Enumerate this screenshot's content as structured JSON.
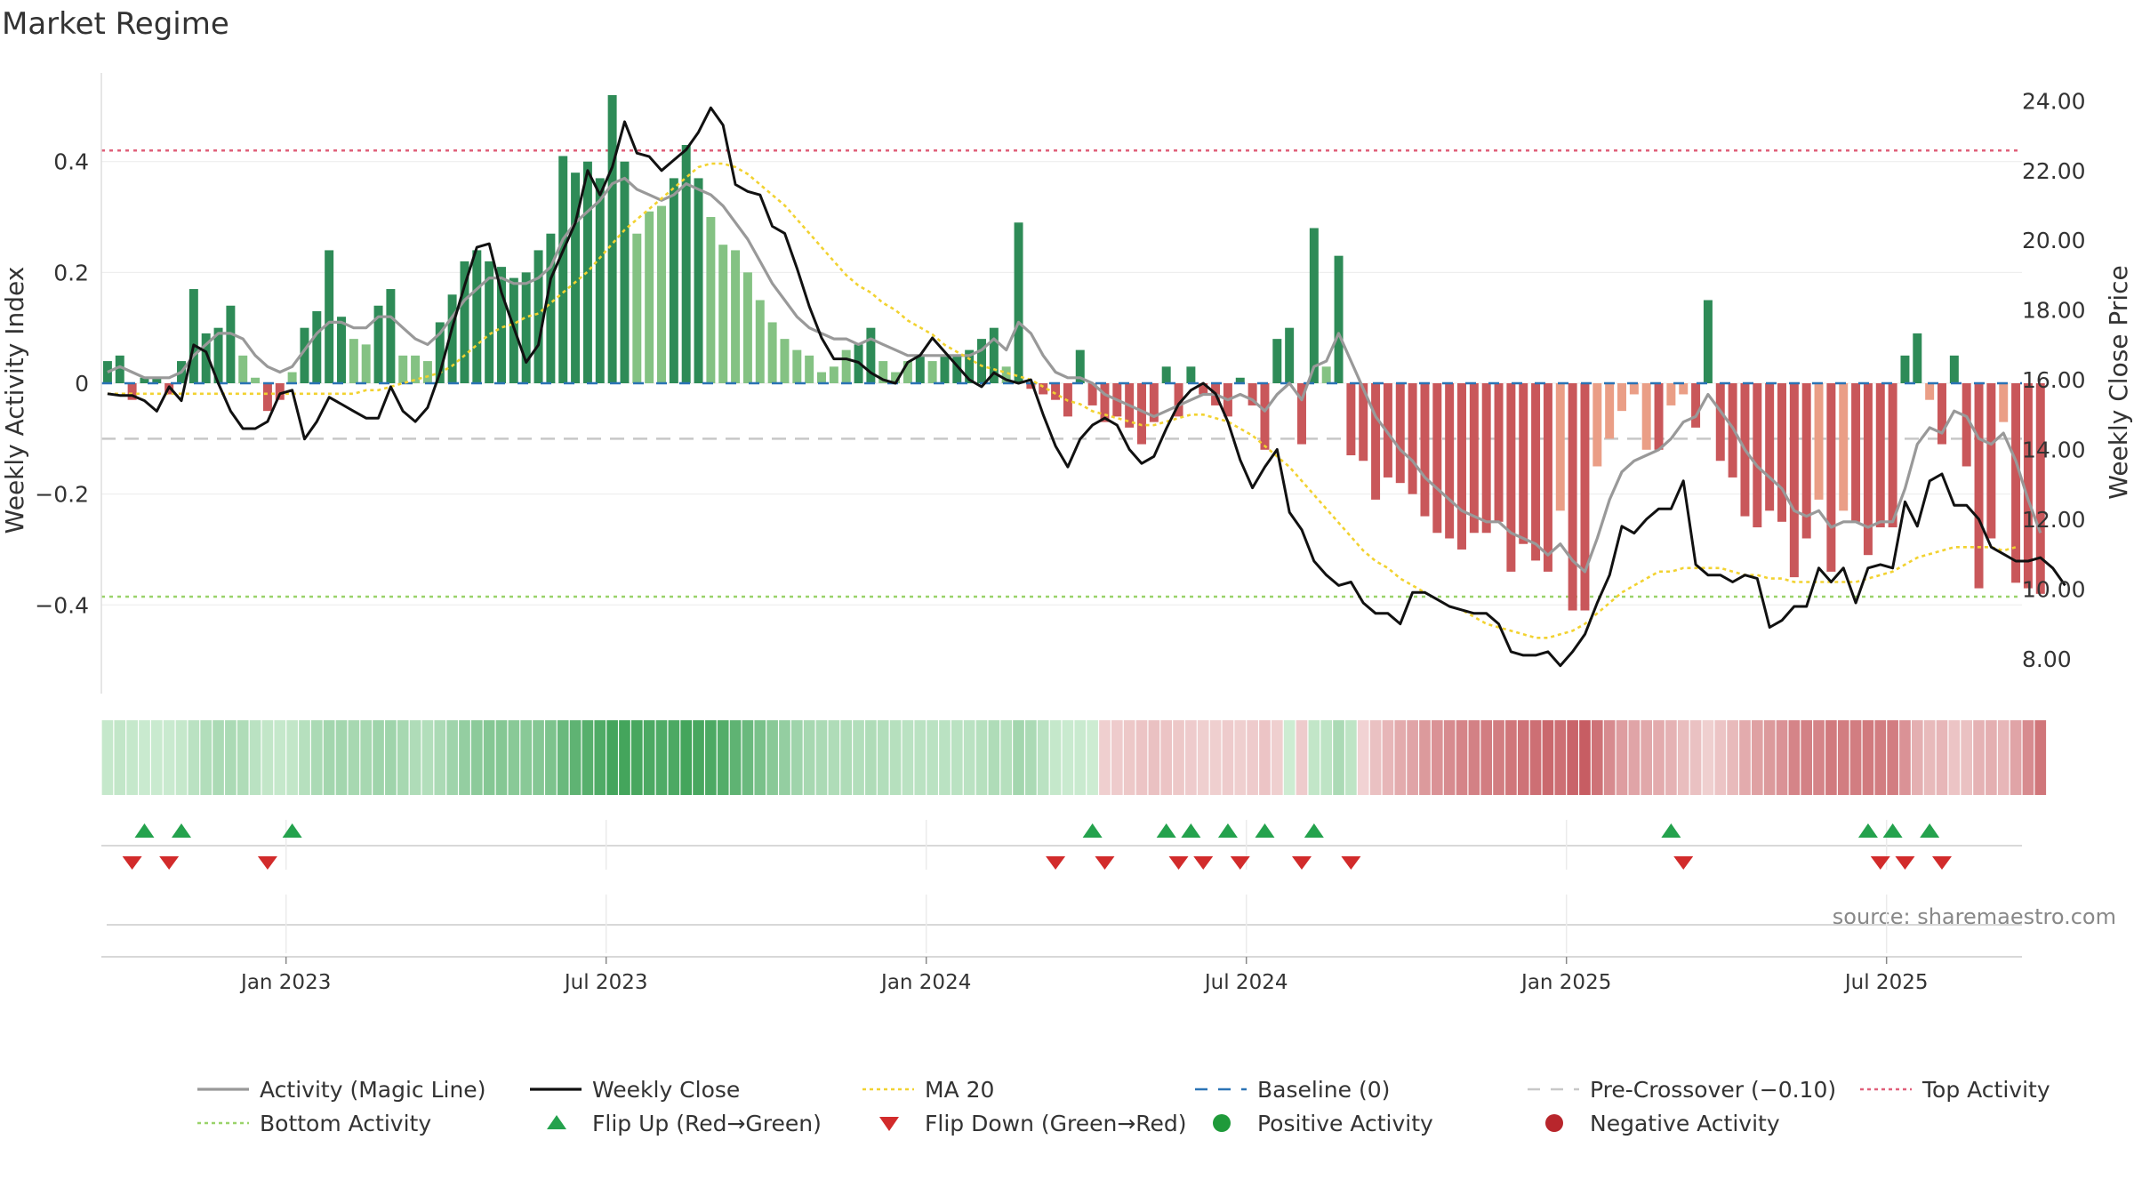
{
  "page": {
    "title": "Market Regime",
    "source": "source: sharemaestro.com"
  },
  "chart_data": {
    "type": "bar",
    "title": "Market Regime",
    "ylabel_left": "Weekly Activity Index",
    "ylabel_right": "Weekly Close Price",
    "ylim_left": [
      -0.56,
      0.56
    ],
    "ylim_right": [
      7.0,
      24.8
    ],
    "yticks_left": [
      -0.4,
      -0.2,
      0,
      0.2,
      0.4
    ],
    "yticks_left_labels": [
      "−0.4",
      "−0.2",
      "0",
      "0.2",
      "0.4"
    ],
    "yticks_right": [
      8,
      10,
      12,
      14,
      16,
      18,
      20,
      22,
      24
    ],
    "yticks_right_labels": [
      "8.00",
      "10.00",
      "12.00",
      "14.00",
      "16.00",
      "18.00",
      "20.00",
      "22.00",
      "24.00"
    ],
    "xlim_weeks": [
      0,
      156
    ],
    "x_ticks": [
      {
        "label": "Jan 2023",
        "week": 15
      },
      {
        "label": "Jul 2023",
        "week": 41
      },
      {
        "label": "Jan 2024",
        "week": 67
      },
      {
        "label": "Jul 2024",
        "week": 93
      },
      {
        "label": "Jan 2025",
        "week": 119
      },
      {
        "label": "Jul 2025",
        "week": 145
      }
    ],
    "reference_lines": {
      "top_activity": 0.42,
      "bottom_activity": -0.385,
      "pre_crossover": -0.1,
      "baseline": 0
    },
    "activity_bars": [
      0.04,
      0.05,
      -0.03,
      0.01,
      0.01,
      -0.02,
      0.04,
      0.17,
      0.09,
      0.1,
      0.14,
      0.05,
      0.01,
      -0.05,
      -0.03,
      0.02,
      0.1,
      0.13,
      0.24,
      0.12,
      0.08,
      0.07,
      0.14,
      0.17,
      0.05,
      0.05,
      0.04,
      0.11,
      0.16,
      0.22,
      0.24,
      0.22,
      0.21,
      0.19,
      0.2,
      0.24,
      0.27,
      0.41,
      0.38,
      0.4,
      0.37,
      0.52,
      0.4,
      0.27,
      0.31,
      0.32,
      0.37,
      0.43,
      0.37,
      0.3,
      0.25,
      0.24,
      0.2,
      0.15,
      0.11,
      0.08,
      0.06,
      0.05,
      0.02,
      0.03,
      0.06,
      0.07,
      0.1,
      0.04,
      0.02,
      0.04,
      0.05,
      0.04,
      0.05,
      0.05,
      0.06,
      0.08,
      0.1,
      0.03,
      0.29,
      -0.01,
      -0.02,
      -0.03,
      -0.06,
      0.06,
      -0.04,
      -0.07,
      -0.06,
      -0.08,
      -0.11,
      -0.07,
      0.03,
      -0.06,
      0.03,
      -0.02,
      -0.04,
      -0.06,
      0.01,
      -0.04,
      -0.12,
      0.08,
      0.1,
      -0.11,
      0.28,
      0.03,
      0.23,
      -0.13,
      -0.14,
      -0.21,
      -0.17,
      -0.18,
      -0.2,
      -0.24,
      -0.27,
      -0.28,
      -0.3,
      -0.27,
      -0.27,
      -0.25,
      -0.34,
      -0.29,
      -0.32,
      -0.34,
      -0.23,
      -0.41,
      -0.41,
      -0.15,
      -0.1,
      -0.05,
      -0.02,
      -0.12,
      -0.12,
      -0.04,
      -0.02,
      -0.08,
      0.15,
      -0.14,
      -0.17,
      -0.24,
      -0.26,
      -0.23,
      -0.25,
      -0.35,
      -0.28,
      -0.21,
      -0.34,
      -0.23,
      -0.25,
      -0.31,
      -0.26,
      -0.26,
      0.05,
      0.09,
      -0.03,
      -0.11,
      0.05,
      -0.15,
      -0.37,
      -0.28,
      -0.07,
      -0.36,
      -0.37,
      -0.38
    ],
    "weekly_close": [
      15.6,
      15.55,
      15.55,
      15.4,
      15.1,
      15.8,
      15.4,
      17.0,
      16.8,
      15.9,
      15.1,
      14.6,
      14.6,
      14.8,
      15.6,
      15.7,
      14.3,
      14.8,
      15.5,
      15.3,
      15.1,
      14.9,
      14.9,
      15.8,
      15.1,
      14.8,
      15.2,
      16.2,
      17.5,
      18.7,
      19.8,
      19.9,
      18.5,
      17.5,
      16.5,
      17.0,
      18.9,
      19.7,
      20.5,
      22.0,
      21.3,
      22.1,
      23.4,
      22.5,
      22.4,
      22.0,
      22.3,
      22.6,
      23.1,
      23.8,
      23.3,
      21.6,
      21.4,
      21.3,
      20.4,
      20.2,
      19.2,
      18.1,
      17.2,
      16.6,
      16.6,
      16.5,
      16.2,
      16.0,
      15.9,
      16.5,
      16.7,
      17.2,
      16.8,
      16.4,
      16.0,
      15.8,
      16.2,
      16.0,
      15.9,
      16.0,
      15.0,
      14.1,
      13.5,
      14.3,
      14.7,
      14.9,
      14.7,
      14.0,
      13.6,
      13.8,
      14.6,
      15.3,
      15.7,
      15.9,
      15.6,
      14.8,
      13.7,
      12.9,
      13.5,
      14.0,
      12.2,
      11.7,
      10.8,
      10.4,
      10.1,
      10.2,
      9.6,
      9.3,
      9.3,
      9.0,
      9.9,
      9.9,
      9.7,
      9.5,
      9.4,
      9.3,
      9.3,
      9.0,
      8.2,
      8.1,
      8.1,
      8.2,
      7.8,
      8.2,
      8.7,
      9.6,
      10.4,
      11.8,
      11.6,
      12.0,
      12.3,
      12.3,
      13.1,
      10.7,
      10.4,
      10.4,
      10.2,
      10.4,
      10.3,
      8.9,
      9.1,
      9.5,
      9.5,
      10.6,
      10.2,
      10.6,
      9.6,
      10.6,
      10.7,
      10.6,
      12.5,
      11.8,
      13.1,
      13.3,
      12.4,
      12.4,
      12.0,
      11.2,
      11.0,
      10.8,
      10.8,
      10.9,
      10.6,
      10.1
    ],
    "activity_magic_line": [
      0.02,
      0.03,
      0.02,
      0.01,
      0.01,
      0.01,
      0.02,
      0.05,
      0.07,
      0.09,
      0.09,
      0.08,
      0.05,
      0.03,
      0.02,
      0.03,
      0.06,
      0.09,
      0.11,
      0.11,
      0.1,
      0.1,
      0.12,
      0.12,
      0.1,
      0.08,
      0.07,
      0.09,
      0.12,
      0.15,
      0.17,
      0.19,
      0.19,
      0.18,
      0.18,
      0.19,
      0.21,
      0.26,
      0.29,
      0.31,
      0.33,
      0.36,
      0.37,
      0.35,
      0.34,
      0.33,
      0.34,
      0.36,
      0.35,
      0.34,
      0.32,
      0.29,
      0.26,
      0.22,
      0.18,
      0.15,
      0.12,
      0.1,
      0.09,
      0.08,
      0.08,
      0.07,
      0.08,
      0.07,
      0.06,
      0.05,
      0.05,
      0.05,
      0.05,
      0.05,
      0.05,
      0.06,
      0.08,
      0.06,
      0.11,
      0.09,
      0.05,
      0.02,
      0.01,
      0.01,
      0.0,
      -0.02,
      -0.03,
      -0.04,
      -0.05,
      -0.06,
      -0.05,
      -0.04,
      -0.03,
      -0.02,
      -0.02,
      -0.03,
      -0.02,
      -0.03,
      -0.05,
      -0.02,
      0.0,
      -0.03,
      0.03,
      0.04,
      0.09,
      0.04,
      -0.01,
      -0.06,
      -0.09,
      -0.12,
      -0.14,
      -0.17,
      -0.19,
      -0.21,
      -0.23,
      -0.24,
      -0.25,
      -0.25,
      -0.27,
      -0.28,
      -0.29,
      -0.31,
      -0.29,
      -0.32,
      -0.34,
      -0.28,
      -0.21,
      -0.16,
      -0.14,
      -0.13,
      -0.12,
      -0.1,
      -0.07,
      -0.06,
      -0.02,
      -0.05,
      -0.08,
      -0.12,
      -0.15,
      -0.17,
      -0.19,
      -0.23,
      -0.24,
      -0.23,
      -0.26,
      -0.25,
      -0.25,
      -0.26,
      -0.25,
      -0.25,
      -0.19,
      -0.11,
      -0.08,
      -0.09,
      -0.05,
      -0.06,
      -0.1,
      -0.11,
      -0.09,
      -0.14,
      -0.21,
      -0.27
    ],
    "ma20": [
      15.6,
      15.6,
      15.6,
      15.6,
      15.6,
      15.6,
      15.6,
      15.6,
      15.6,
      15.6,
      15.6,
      15.6,
      15.6,
      15.6,
      15.6,
      15.6,
      15.6,
      15.6,
      15.6,
      15.6,
      15.6,
      15.7,
      15.7,
      15.8,
      15.9,
      16.0,
      16.1,
      16.2,
      16.4,
      16.7,
      17.0,
      17.3,
      17.5,
      17.6,
      17.8,
      17.9,
      18.2,
      18.5,
      18.8,
      19.1,
      19.5,
      19.9,
      20.3,
      20.6,
      20.9,
      21.2,
      21.5,
      21.8,
      22.1,
      22.2,
      22.2,
      22.1,
      21.9,
      21.6,
      21.3,
      21.0,
      20.6,
      20.2,
      19.8,
      19.4,
      19.0,
      18.7,
      18.5,
      18.2,
      18.0,
      17.7,
      17.5,
      17.3,
      17.0,
      16.8,
      16.6,
      16.4,
      16.3,
      16.2,
      16.1,
      16.0,
      15.8,
      15.6,
      15.4,
      15.3,
      15.1,
      15.0,
      14.9,
      14.8,
      14.7,
      14.7,
      14.8,
      14.9,
      15.0,
      15.0,
      14.9,
      14.8,
      14.6,
      14.4,
      14.1,
      13.8,
      13.5,
      13.1,
      12.7,
      12.3,
      11.9,
      11.5,
      11.1,
      10.8,
      10.6,
      10.3,
      10.1,
      9.9,
      9.7,
      9.5,
      9.4,
      9.2,
      9.0,
      8.9,
      8.8,
      8.7,
      8.6,
      8.6,
      8.7,
      8.8,
      9.0,
      9.3,
      9.6,
      9.9,
      10.1,
      10.3,
      10.5,
      10.5,
      10.6,
      10.6,
      10.6,
      10.6,
      10.5,
      10.4,
      10.4,
      10.3,
      10.3,
      10.2,
      10.2,
      10.2,
      10.2,
      10.2,
      10.2,
      10.3,
      10.4,
      10.5,
      10.7,
      10.9,
      11.0,
      11.1,
      11.2,
      11.2,
      11.2,
      11.2,
      11.1,
      11.2
    ],
    "flip_up_weeks": [
      3,
      6,
      15,
      80,
      86,
      88,
      91,
      94,
      98,
      127,
      143,
      145,
      148
    ],
    "flip_down_weeks": [
      2,
      5,
      13,
      77,
      81,
      87,
      89,
      92,
      97,
      101,
      128,
      144,
      146,
      149
    ],
    "legend": [
      {
        "label": "Activity (Magic Line)",
        "kind": "line",
        "color": "#999999"
      },
      {
        "label": "Weekly Close",
        "kind": "line",
        "color": "#111111"
      },
      {
        "label": "MA 20",
        "kind": "dotted",
        "color": "#f2d230"
      },
      {
        "label": "Baseline (0)",
        "kind": "dashed",
        "color": "#2b73b5"
      },
      {
        "label": "Pre-Crossover (−0.10)",
        "kind": "dashed",
        "color": "#c8c8c8"
      },
      {
        "label": "Top Activity",
        "kind": "dotted",
        "color": "#e0607a"
      },
      {
        "label": "Bottom Activity",
        "kind": "dotted",
        "color": "#9ad36a"
      },
      {
        "label": "Flip Up (Red→Green)",
        "kind": "up",
        "color": "#24a24d"
      },
      {
        "label": "Flip Down (Green→Red)",
        "kind": "down",
        "color": "#d22b2b"
      },
      {
        "label": "Positive Activity",
        "kind": "dot",
        "color": "#1f9a3a"
      },
      {
        "label": "Negative Activity",
        "kind": "dot",
        "color": "#b8262c"
      }
    ],
    "colors": {
      "pos_dark": "#2e8b57",
      "pos_light": "#84c283",
      "neg_dark": "#c9575a",
      "neg_light": "#ea9e86",
      "grid": "#ebebeb",
      "axis": "#444444"
    }
  }
}
